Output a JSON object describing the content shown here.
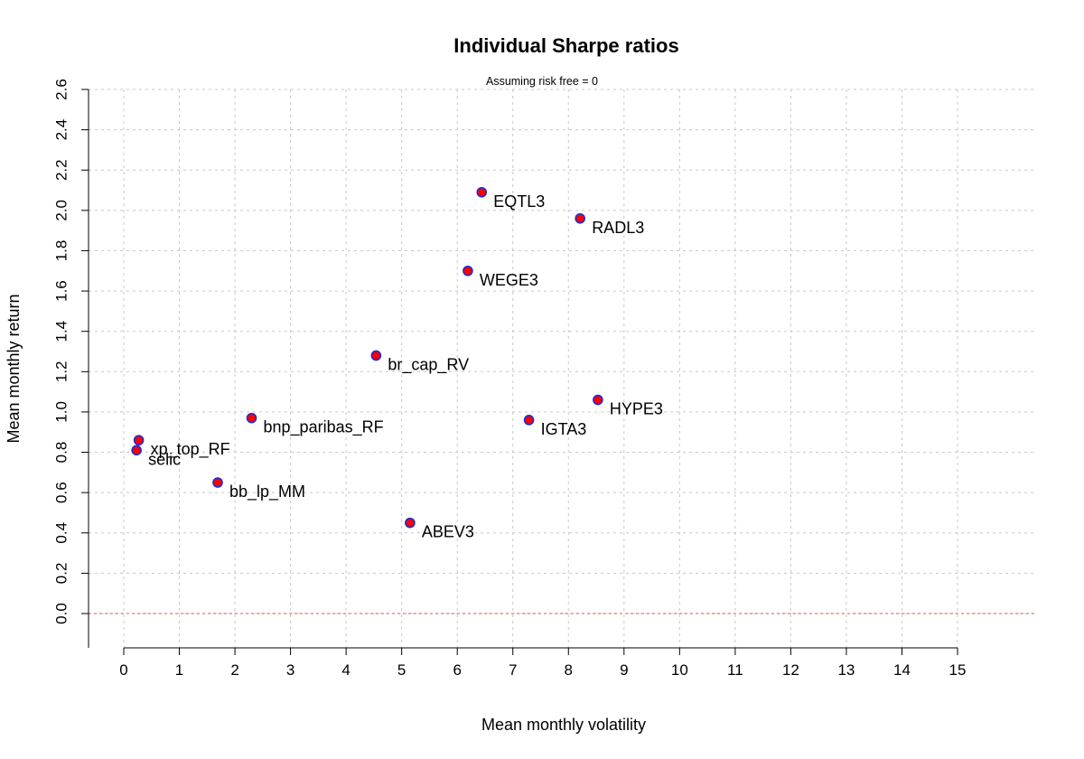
{
  "chart_data": {
    "type": "scatter",
    "title": "Individual Sharpe ratios",
    "subtitle": "Assuming risk free = 0",
    "xlabel": "Mean monthly volatility",
    "ylabel": "Mean monthly return",
    "xlim": [
      0,
      15
    ],
    "ylim": [
      0,
      2.6
    ],
    "x_ticks": [
      "0",
      "1",
      "2",
      "3",
      "4",
      "5",
      "6",
      "7",
      "8",
      "9",
      "10",
      "11",
      "12",
      "13",
      "14",
      "15"
    ],
    "y_ticks": [
      "0.0",
      "0.2",
      "0.4",
      "0.6",
      "0.8",
      "1.0",
      "1.2",
      "1.4",
      "1.6",
      "1.8",
      "2.0",
      "2.2",
      "2.4",
      "2.6"
    ],
    "grid": true,
    "reference_line_y": 0,
    "point_fill_color": "#ff0000",
    "point_border_color": "#1f2bd6",
    "reference_line_color": "#e07a72",
    "points": [
      {
        "label": "EQTL3",
        "x": 6.44,
        "y": 2.09
      },
      {
        "label": "RADL3",
        "x": 8.21,
        "y": 1.96
      },
      {
        "label": "WEGE3",
        "x": 6.19,
        "y": 1.7
      },
      {
        "label": "br_cap_RV",
        "x": 4.54,
        "y": 1.28
      },
      {
        "label": "HYPE3",
        "x": 8.53,
        "y": 1.06
      },
      {
        "label": "IGTA3",
        "x": 7.29,
        "y": 0.96
      },
      {
        "label": "bnp_paribas_RF",
        "x": 2.3,
        "y": 0.97
      },
      {
        "label": "xp_top_RF",
        "x": 0.27,
        "y": 0.86
      },
      {
        "label": "selic",
        "x": 0.23,
        "y": 0.81
      },
      {
        "label": "bb_lp_MM",
        "x": 1.69,
        "y": 0.65
      },
      {
        "label": "ABEV3",
        "x": 5.15,
        "y": 0.45
      }
    ]
  }
}
